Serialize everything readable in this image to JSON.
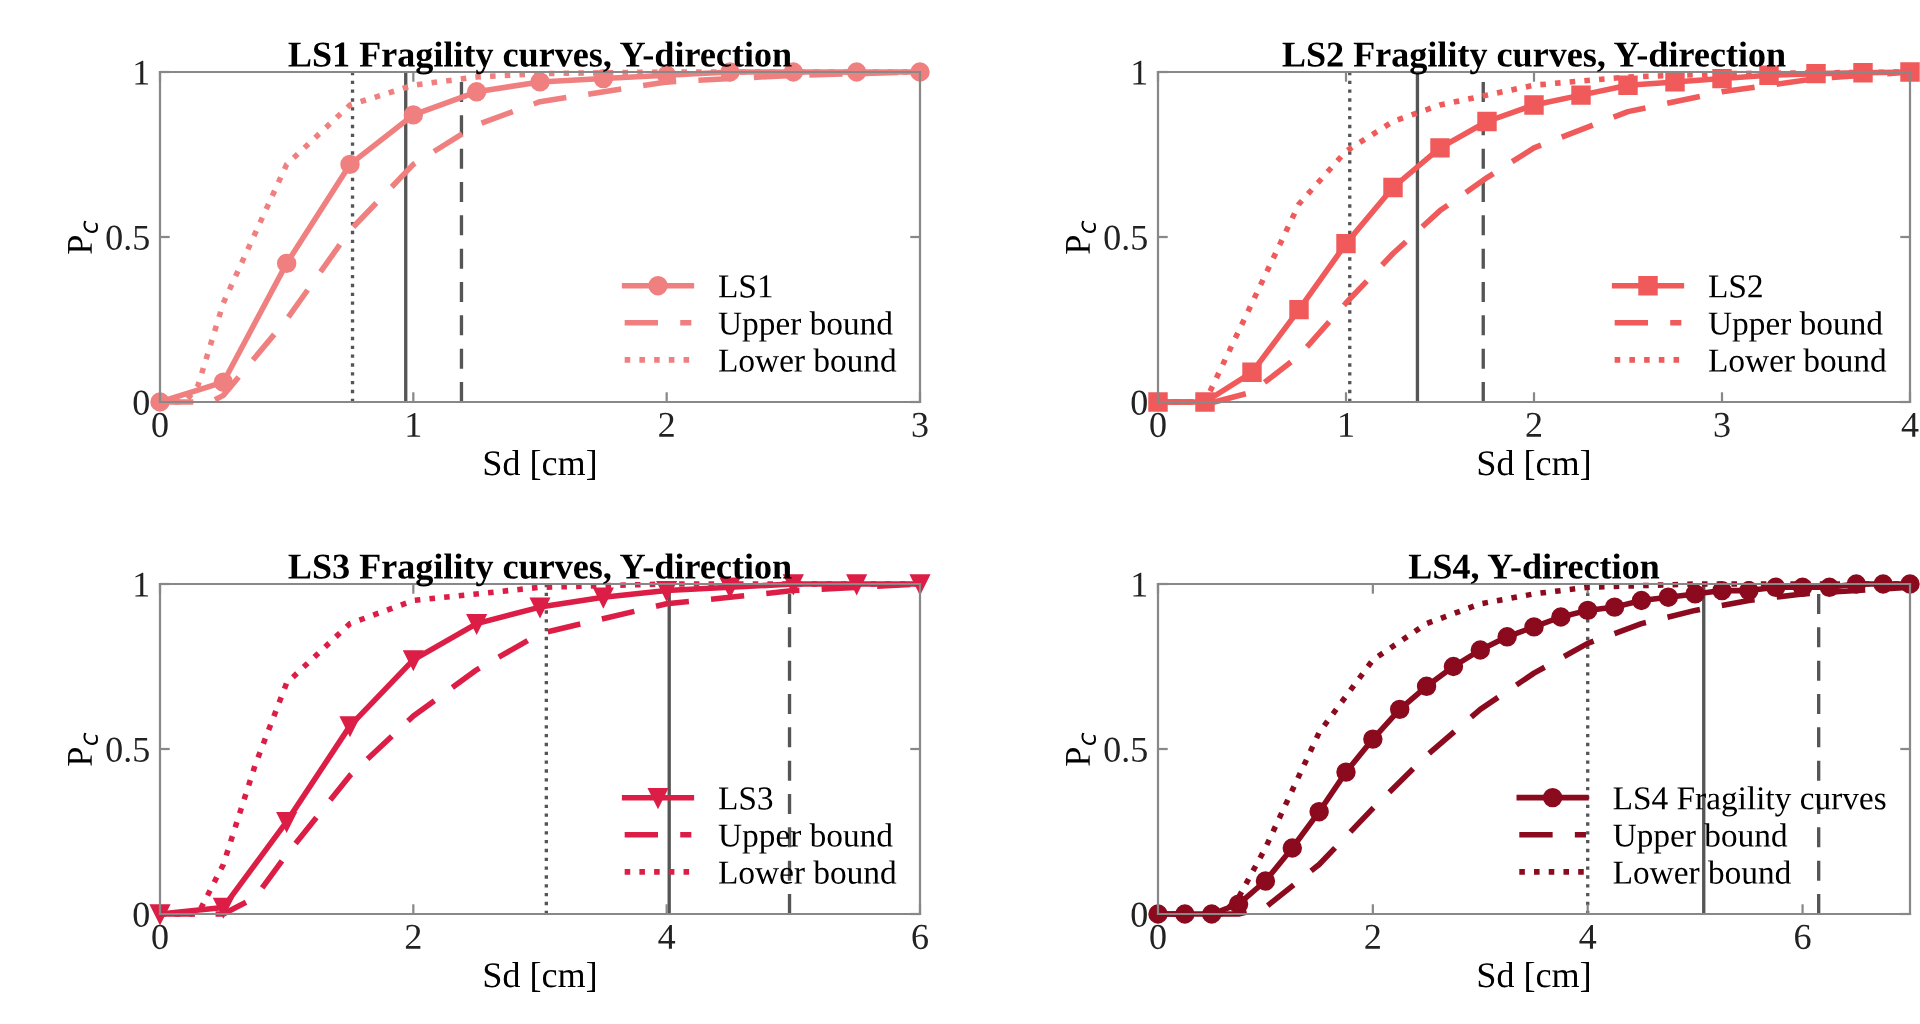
{
  "chart_data": [
    {
      "type": "line",
      "title": "LS1 Fragility curves, Y-direction",
      "xlabel": "Sd [cm]",
      "ylabel": "P$_{c}$",
      "xlim": [
        0,
        3
      ],
      "xticks": [
        0,
        1,
        2,
        3
      ],
      "ylim": [
        0,
        1
      ],
      "yticks": [
        0,
        0.5,
        1
      ],
      "legend": "lower right",
      "grid": false,
      "series": [
        {
          "name": "LS1",
          "color": "#f08080",
          "marker": "circle",
          "line_style": "solid",
          "x": [
            0,
            0.25,
            0.5,
            0.75,
            1,
            1.25,
            1.5,
            1.75,
            2,
            2.25,
            2.5,
            2.75,
            3
          ],
          "values": [
            0,
            0.06,
            0.42,
            0.72,
            0.87,
            0.94,
            0.97,
            0.98,
            0.99,
            1,
            1,
            1,
            1
          ]
        },
        {
          "name": "Upper bound",
          "color": "#f08080",
          "marker": "none",
          "line_style": "dashed",
          "x": [
            0,
            0.2,
            0.25,
            0.5,
            0.75,
            1,
            1.25,
            1.5,
            2,
            2.5,
            3
          ],
          "values": [
            0,
            0,
            0.02,
            0.25,
            0.52,
            0.72,
            0.84,
            0.91,
            0.97,
            0.99,
            1
          ]
        },
        {
          "name": "Lower bound",
          "color": "#f08080",
          "marker": "none",
          "line_style": "dotted",
          "x": [
            0,
            0.1,
            0.15,
            0.25,
            0.5,
            0.75,
            1,
            1.25,
            1.5,
            2,
            3
          ],
          "values": [
            0,
            0,
            0.05,
            0.3,
            0.72,
            0.9,
            0.96,
            0.985,
            0.995,
            1,
            1
          ]
        }
      ],
      "ref_lines": [
        {
          "axis": "x",
          "value": 0.76,
          "color": "#555555",
          "line_style": "dotted"
        },
        {
          "axis": "x",
          "value": 0.97,
          "color": "#555555",
          "line_style": "solid"
        },
        {
          "axis": "x",
          "value": 1.19,
          "color": "#555555",
          "line_style": "dashed"
        }
      ]
    },
    {
      "type": "line",
      "title": "LS2 Fragility curves, Y-direction",
      "xlabel": "Sd [cm]",
      "ylabel": "P$_{c}$",
      "xlim": [
        0,
        4
      ],
      "xticks": [
        0,
        1,
        2,
        3,
        4
      ],
      "ylim": [
        0,
        1
      ],
      "yticks": [
        0,
        0.5,
        1
      ],
      "legend": "lower right",
      "grid": false,
      "series": [
        {
          "name": "LS2",
          "color": "#f05a5a",
          "marker": "square",
          "line_style": "solid",
          "x": [
            0,
            0.25,
            0.5,
            0.75,
            1,
            1.25,
            1.5,
            1.75,
            2,
            2.25,
            2.5,
            2.75,
            3,
            3.25,
            3.5,
            3.75,
            4
          ],
          "values": [
            0,
            0,
            0.09,
            0.28,
            0.48,
            0.65,
            0.77,
            0.85,
            0.9,
            0.93,
            0.96,
            0.97,
            0.98,
            0.99,
            0.995,
            0.998,
            1
          ]
        },
        {
          "name": "Upper bound",
          "color": "#f05a5a",
          "marker": "none",
          "line_style": "dashed",
          "x": [
            0,
            0.3,
            0.5,
            0.75,
            1,
            1.25,
            1.5,
            1.75,
            2,
            2.5,
            3,
            3.5,
            4
          ],
          "values": [
            0,
            0,
            0.03,
            0.14,
            0.3,
            0.45,
            0.58,
            0.68,
            0.77,
            0.88,
            0.94,
            0.98,
            1
          ]
        },
        {
          "name": "Lower bound",
          "color": "#f05a5a",
          "marker": "none",
          "line_style": "dotted",
          "x": [
            0,
            0.25,
            0.5,
            0.75,
            1,
            1.25,
            1.5,
            2,
            2.5,
            3,
            4
          ],
          "values": [
            0,
            0,
            0.3,
            0.6,
            0.76,
            0.85,
            0.9,
            0.96,
            0.985,
            0.995,
            1
          ]
        }
      ],
      "ref_lines": [
        {
          "axis": "x",
          "value": 1.02,
          "color": "#555555",
          "line_style": "dotted"
        },
        {
          "axis": "x",
          "value": 1.38,
          "color": "#555555",
          "line_style": "solid"
        },
        {
          "axis": "x",
          "value": 1.73,
          "color": "#555555",
          "line_style": "dashed"
        }
      ]
    },
    {
      "type": "line",
      "title": "LS3 Fragility curves, Y-direction",
      "xlabel": "Sd [cm]",
      "ylabel": "P$_{c}$",
      "xlim": [
        0,
        6
      ],
      "xticks": [
        0,
        2,
        4,
        6
      ],
      "ylim": [
        0,
        1
      ],
      "yticks": [
        0,
        0.5,
        1
      ],
      "legend": "lower right",
      "grid": false,
      "series": [
        {
          "name": "LS3",
          "color": "#dc1e46",
          "marker": "triangle",
          "line_style": "solid",
          "x": [
            0,
            0.5,
            1,
            1.5,
            2,
            2.5,
            3,
            3.5,
            4,
            4.5,
            5,
            5.5,
            6
          ],
          "values": [
            0,
            0.02,
            0.28,
            0.57,
            0.77,
            0.88,
            0.93,
            0.96,
            0.98,
            0.99,
            1,
            1,
            1
          ]
        },
        {
          "name": "Upper bound",
          "color": "#dc1e46",
          "marker": "none",
          "line_style": "dashed",
          "x": [
            0,
            0.5,
            0.75,
            1,
            1.5,
            2,
            2.5,
            3,
            4,
            5,
            6
          ],
          "values": [
            0,
            0,
            0.05,
            0.18,
            0.42,
            0.6,
            0.74,
            0.85,
            0.94,
            0.98,
            1
          ]
        },
        {
          "name": "Lower bound",
          "color": "#dc1e46",
          "marker": "none",
          "line_style": "dotted",
          "x": [
            0,
            0.3,
            0.5,
            0.75,
            1,
            1.5,
            2,
            3,
            4,
            6
          ],
          "values": [
            0,
            0,
            0.15,
            0.45,
            0.7,
            0.88,
            0.95,
            0.99,
            1,
            1
          ]
        }
      ],
      "ref_lines": [
        {
          "axis": "x",
          "value": 3.05,
          "color": "#555555",
          "line_style": "dotted"
        },
        {
          "axis": "x",
          "value": 4.02,
          "color": "#555555",
          "line_style": "solid"
        },
        {
          "axis": "x",
          "value": 4.97,
          "color": "#555555",
          "line_style": "dashed"
        }
      ]
    },
    {
      "type": "line",
      "title": "LS4, Y-direction",
      "xlabel": "Sd [cm]",
      "ylabel": "P$_{c}$",
      "xlim": [
        0,
        7
      ],
      "xticks": [
        0,
        2,
        4,
        6
      ],
      "ylim": [
        0,
        1
      ],
      "yticks": [
        0,
        0.5,
        1
      ],
      "legend": "lower right",
      "grid": false,
      "series": [
        {
          "name": "LS4 Fragility curves",
          "color": "#8b0a1e",
          "marker": "circle",
          "line_style": "solid",
          "x": [
            0,
            0.25,
            0.5,
            0.75,
            1,
            1.25,
            1.5,
            1.75,
            2,
            2.25,
            2.5,
            2.75,
            3,
            3.25,
            3.5,
            3.75,
            4,
            4.25,
            4.5,
            4.75,
            5,
            5.25,
            5.5,
            5.75,
            6,
            6.25,
            6.5,
            6.75,
            7
          ],
          "values": [
            0,
            0,
            0,
            0.03,
            0.1,
            0.2,
            0.31,
            0.43,
            0.53,
            0.62,
            0.69,
            0.75,
            0.8,
            0.84,
            0.87,
            0.9,
            0.92,
            0.93,
            0.95,
            0.96,
            0.97,
            0.98,
            0.98,
            0.99,
            0.99,
            0.99,
            1,
            1,
            1
          ]
        },
        {
          "name": "Upper bound",
          "color": "#8b0a1e",
          "marker": "none",
          "line_style": "dashed",
          "x": [
            0,
            0.75,
            1,
            1.5,
            2,
            2.5,
            3,
            3.5,
            4,
            4.5,
            5,
            5.5,
            6,
            7
          ],
          "values": [
            0,
            0,
            0.02,
            0.15,
            0.32,
            0.48,
            0.62,
            0.73,
            0.82,
            0.88,
            0.92,
            0.95,
            0.97,
            0.99
          ]
        },
        {
          "name": "Lower bound",
          "color": "#8b0a1e",
          "marker": "none",
          "line_style": "dotted",
          "x": [
            0,
            0.6,
            0.75,
            1,
            1.5,
            2,
            2.5,
            3,
            3.5,
            4,
            5,
            7
          ],
          "values": [
            0,
            0,
            0.05,
            0.2,
            0.55,
            0.77,
            0.88,
            0.94,
            0.97,
            0.99,
            1,
            1
          ]
        }
      ],
      "ref_lines": [
        {
          "axis": "x",
          "value": 4.0,
          "color": "#555555",
          "line_style": "dotted"
        },
        {
          "axis": "x",
          "value": 5.08,
          "color": "#555555",
          "line_style": "solid"
        },
        {
          "axis": "x",
          "value": 6.15,
          "color": "#555555",
          "line_style": "dashed"
        }
      ]
    }
  ]
}
